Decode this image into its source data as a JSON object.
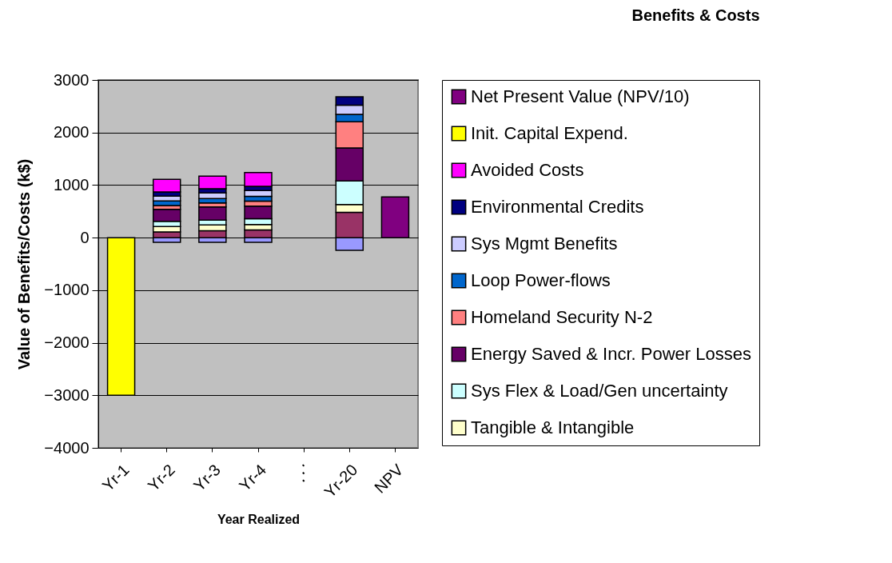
{
  "chart_data": {
    "type": "bar",
    "stacked": true,
    "title": "Benefits & Costs",
    "xlabel": "Year Realized",
    "ylabel": "Value of Benefits/Costs (k$)",
    "categories": [
      "Yr-1",
      "Yr-2",
      "Yr-3",
      "Yr-4",
      "⋰",
      "Yr-20",
      "NPV"
    ],
    "series": [
      {
        "color": "#9999ff",
        "values": [
          null,
          -90,
          -90,
          -90,
          null,
          -240,
          null
        ]
      },
      {
        "color": "#993366",
        "values": [
          null,
          110,
          130,
          145,
          null,
          480,
          null
        ]
      },
      {
        "name": "Tangible & Intangible",
        "color": "#ffffcc",
        "values": [
          null,
          100,
          110,
          105,
          null,
          150,
          null
        ]
      },
      {
        "name": "Sys Flex & Load/Gen uncertainty",
        "color": "#ccffff",
        "values": [
          null,
          100,
          95,
          110,
          null,
          450,
          null
        ]
      },
      {
        "name": "Energy Saved & Incr. Power Losses",
        "color": "#660066",
        "values": [
          null,
          230,
          250,
          240,
          null,
          625,
          null
        ]
      },
      {
        "name": "Homeland Security N-2",
        "color": "#ff8080",
        "values": [
          null,
          70,
          75,
          95,
          null,
          500,
          null
        ]
      },
      {
        "name": "Loop Power-flows",
        "color": "#0066cc",
        "values": [
          null,
          90,
          85,
          90,
          null,
          140,
          null
        ]
      },
      {
        "name": "Sys Mgmt Benefits",
        "color": "#ccccff",
        "values": [
          null,
          90,
          105,
          110,
          null,
          175,
          null
        ]
      },
      {
        "name": "Environmental Credits",
        "color": "#000080",
        "values": [
          null,
          80,
          80,
          80,
          null,
          160,
          null
        ]
      },
      {
        "name": "Avoided Costs",
        "color": "#ff00ff",
        "values": [
          null,
          240,
          240,
          265,
          null,
          null,
          null
        ]
      },
      {
        "name": "Init. Capital Expend.",
        "color": "#ffff00",
        "values": [
          -3000,
          null,
          null,
          null,
          null,
          null,
          null
        ]
      },
      {
        "name": "Net Present Value (NPV/10)",
        "color": "#800080",
        "values": [
          null,
          null,
          null,
          null,
          null,
          null,
          775
        ]
      }
    ],
    "ylim": [
      -4000,
      3000
    ],
    "yticks": [
      -4000,
      -3000,
      -2000,
      -1000,
      0,
      1000,
      2000,
      3000
    ],
    "grid": "y",
    "legend": "right"
  }
}
